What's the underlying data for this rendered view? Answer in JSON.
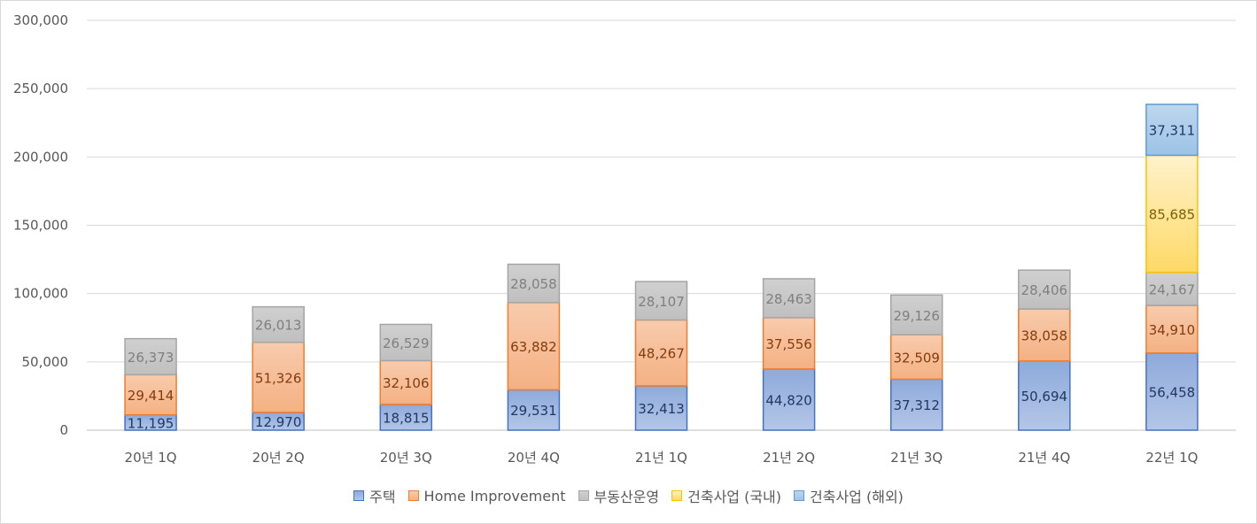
{
  "chart_data": {
    "type": "stacked_bar",
    "categories": [
      "20년 1Q",
      "20년 2Q",
      "20년 3Q",
      "20년 4Q",
      "21년 1Q",
      "21년 2Q",
      "21년 3Q",
      "21년 4Q",
      "22년 1Q"
    ],
    "ylim": [
      0,
      300000
    ],
    "yticks": [
      0,
      50000,
      100000,
      150000,
      200000,
      250000,
      300000
    ],
    "ytick_labels": [
      "0",
      "50,000",
      "100,000",
      "150,000",
      "200,000",
      "250,000",
      "300,000"
    ],
    "grid": true,
    "legend_position": "bottom",
    "series": [
      {
        "name": "주택",
        "color_top": "#8eaadb",
        "color_bottom": "#b4c6e7",
        "edge": "#4472c4",
        "label_color": "#1f3864",
        "values": [
          11195,
          12970,
          18815,
          29531,
          32413,
          44820,
          37312,
          50694,
          56458
        ],
        "labels": [
          "11,195",
          "12,970",
          "18,815",
          "29,531",
          "32,413",
          "44,820",
          "37,312",
          "50,694",
          "56,458"
        ]
      },
      {
        "name": "Home Improvement",
        "color_top": "#f8cbad",
        "color_bottom": "#f4b183",
        "edge": "#ed7d31",
        "label_color": "#843c0c",
        "values": [
          29414,
          51326,
          32106,
          63882,
          48267,
          37556,
          32509,
          38058,
          34910
        ],
        "labels": [
          "29,414",
          "51,326",
          "32,106",
          "63,882",
          "48,267",
          "37,556",
          "32,509",
          "38,058",
          "34,910"
        ]
      },
      {
        "name": "부동산운영",
        "color_top": "#d0d0d0",
        "color_bottom": "#bfbfbf",
        "edge": "#a5a5a5",
        "label_color": "#7f7f7f",
        "values": [
          26373,
          26013,
          26529,
          28058,
          28107,
          28463,
          29126,
          28406,
          24167
        ],
        "labels": [
          "26,373",
          "26,013",
          "26,529",
          "28,058",
          "28,107",
          "28,463",
          "29,126",
          "28,406",
          "24,167"
        ]
      },
      {
        "name": "건축사업 (국내)",
        "color_top": "#fff2cc",
        "color_bottom": "#ffd966",
        "edge": "#ffc000",
        "label_color": "#7f6000",
        "values": [
          0,
          0,
          0,
          0,
          0,
          0,
          0,
          0,
          85685
        ],
        "labels": [
          "",
          "",
          "",
          "",
          "",
          "",
          "",
          "",
          "85,685"
        ]
      },
      {
        "name": "건축사업 (해외)",
        "color_top": "#bdd7ee",
        "color_bottom": "#9dc3e6",
        "edge": "#5b9bd5",
        "label_color": "#1f3864",
        "values": [
          0,
          0,
          0,
          0,
          0,
          0,
          0,
          0,
          37311
        ],
        "labels": [
          "",
          "",
          "",
          "",
          "",
          "",
          "",
          "",
          "37,311"
        ]
      }
    ]
  }
}
